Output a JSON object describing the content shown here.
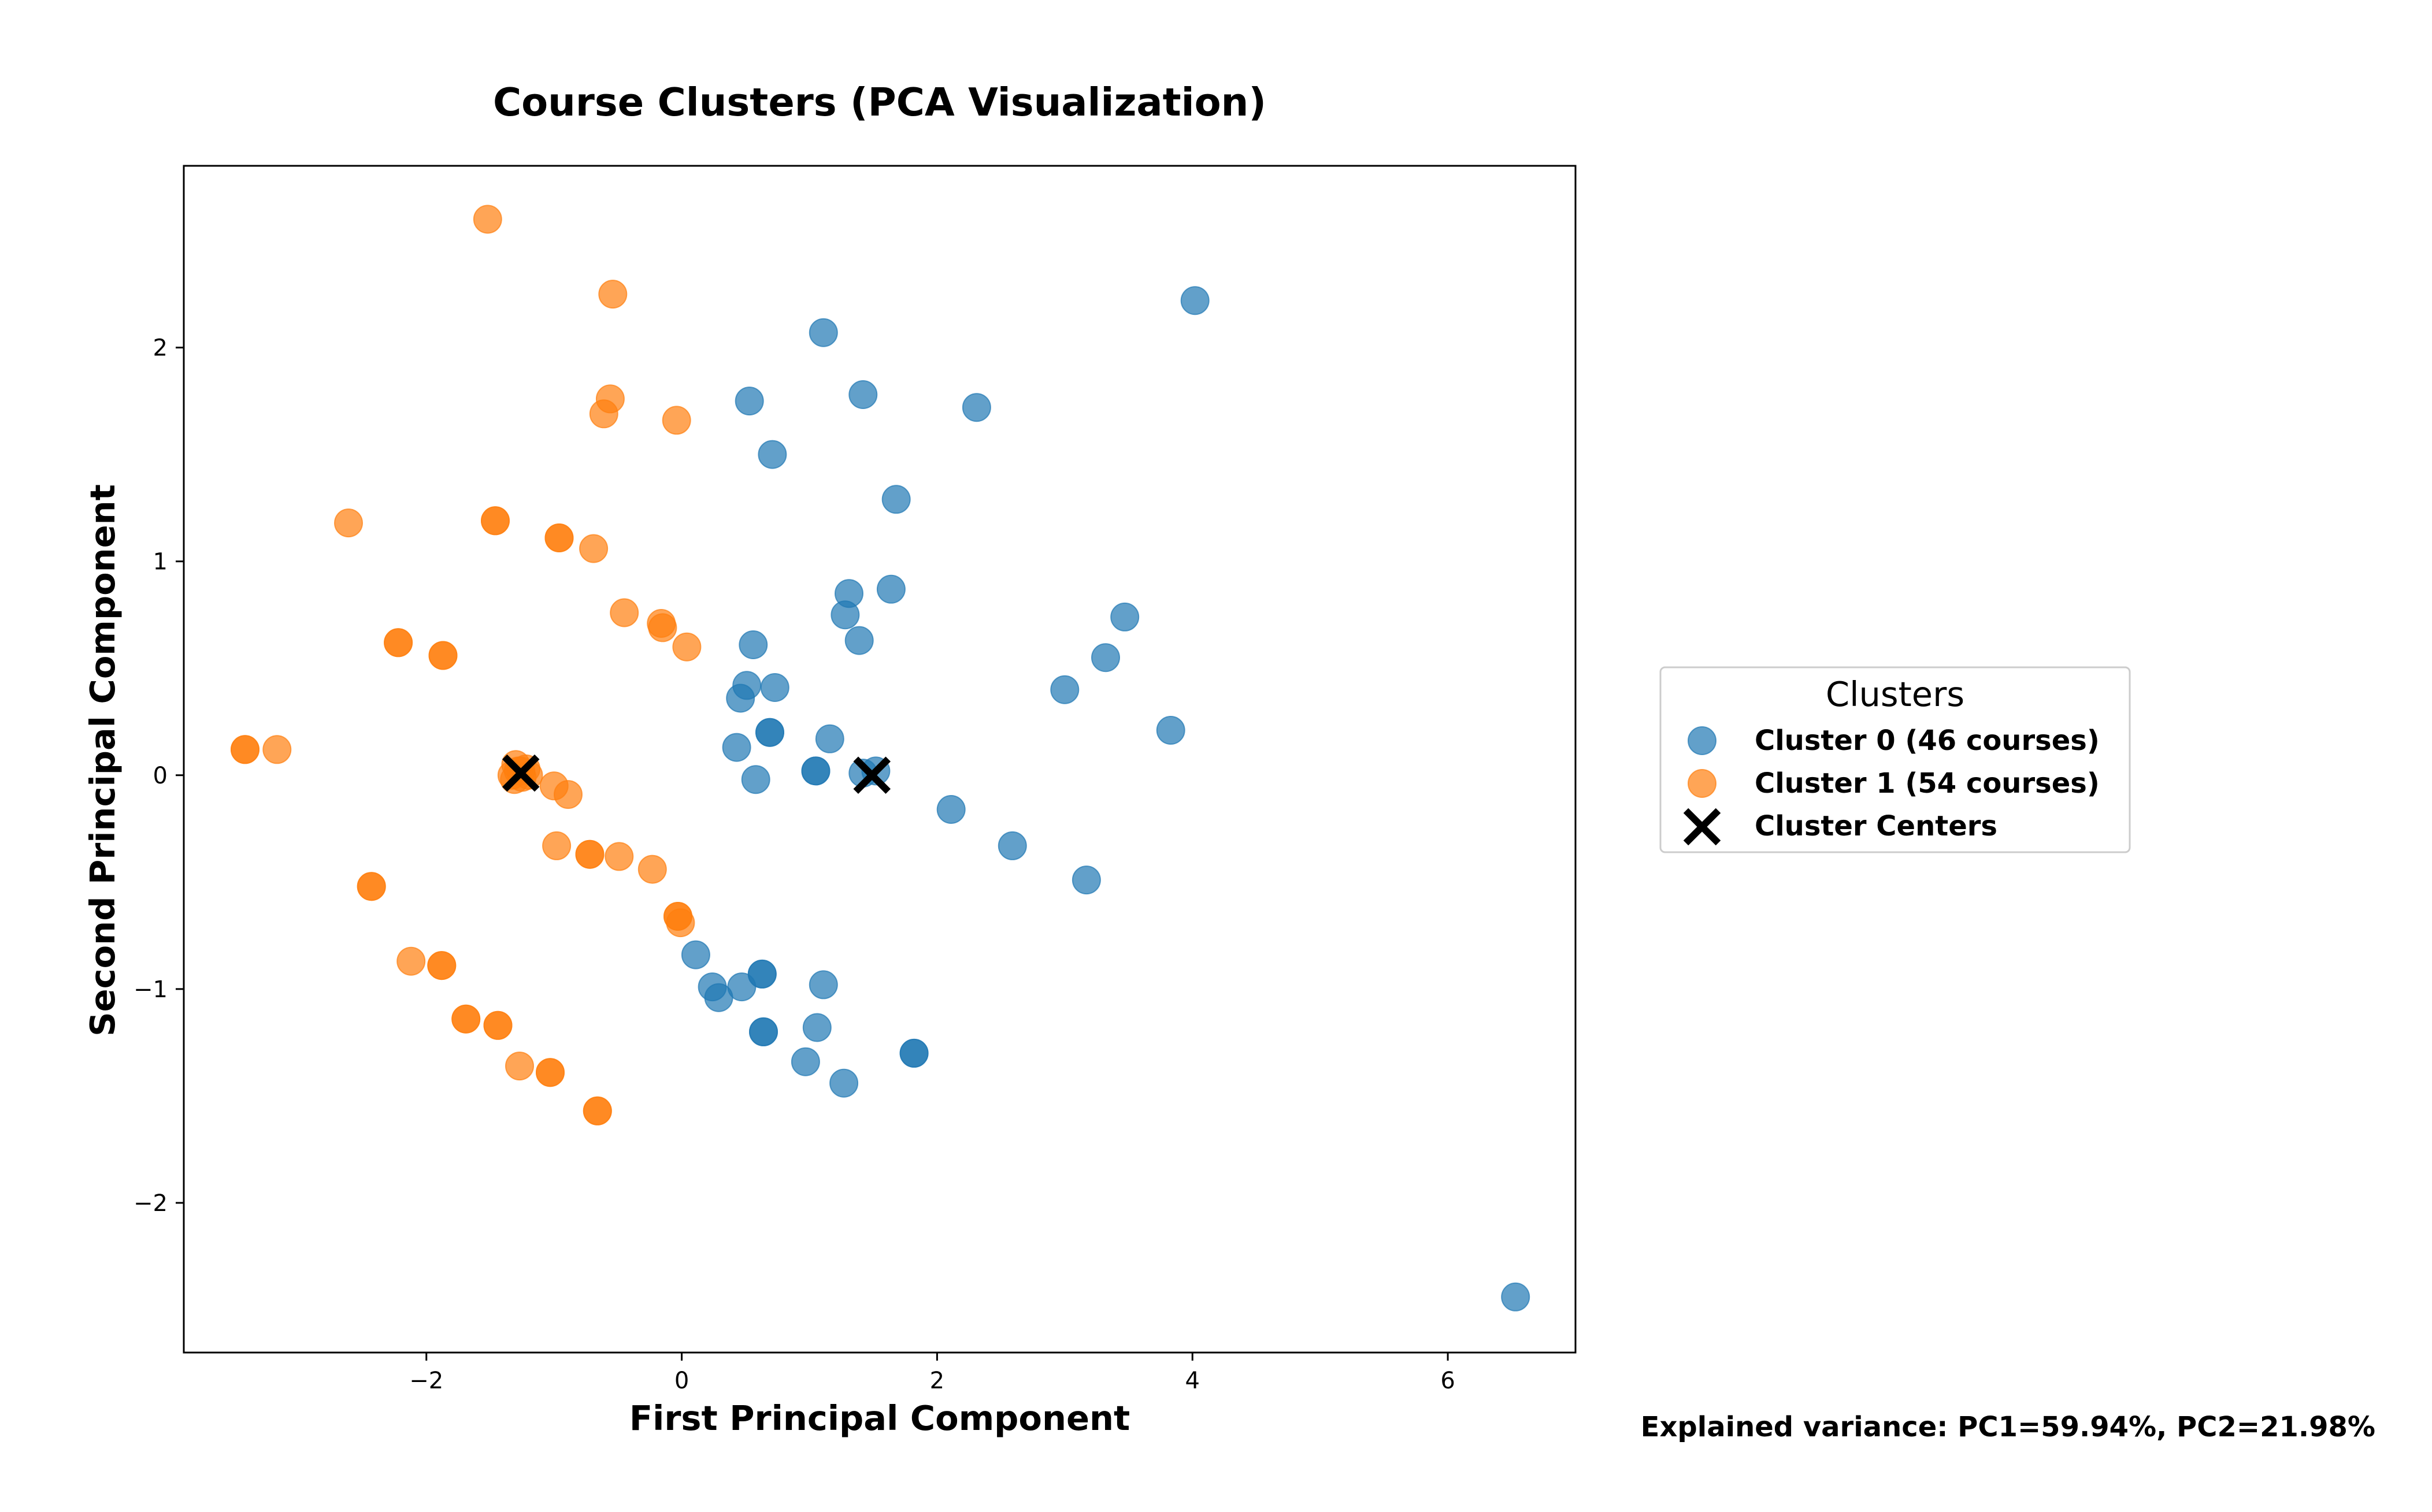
{
  "chart_data": {
    "type": "scatter",
    "title": "Course Clusters (PCA Visualization)",
    "xlabel": "First Principal Component",
    "ylabel": "Second Principal Component",
    "xlim": [
      -3.9,
      7.0
    ],
    "ylim": [
      -2.7,
      2.85
    ],
    "xticks": [
      -2,
      0,
      2,
      4,
      6
    ],
    "yticks": [
      -2,
      -1,
      0,
      1,
      2
    ],
    "xtick_labels": [
      "−2",
      "0",
      "2",
      "4",
      "6"
    ],
    "ytick_labels": [
      "−2",
      "−1",
      "0",
      "1",
      "2"
    ],
    "grid": false,
    "legend": {
      "title": "Clusters",
      "placement": "outside-right",
      "entries": [
        "Cluster 0 (46 courses)",
        "Cluster 1 (54 courses)",
        "Cluster Centers"
      ]
    },
    "annotation": "Explained variance: PC1=59.94%, PC2=21.98%",
    "colors": {
      "cluster0": "#1f77b4",
      "cluster1": "#ff7f0e",
      "centers": "#000000"
    },
    "series": [
      {
        "name": "Cluster 0 (46 courses)",
        "points": [
          [
            4.02,
            2.22
          ],
          [
            1.11,
            2.07
          ],
          [
            1.42,
            1.78
          ],
          [
            0.53,
            1.75
          ],
          [
            2.31,
            1.72
          ],
          [
            0.71,
            1.5
          ],
          [
            1.68,
            1.29
          ],
          [
            1.31,
            0.85
          ],
          [
            1.64,
            0.87
          ],
          [
            1.28,
            0.75
          ],
          [
            3.47,
            0.74
          ],
          [
            1.39,
            0.63
          ],
          [
            0.56,
            0.61
          ],
          [
            3.32,
            0.55
          ],
          [
            0.51,
            0.42
          ],
          [
            0.73,
            0.41
          ],
          [
            0.46,
            0.36
          ],
          [
            3.0,
            0.4
          ],
          [
            0.69,
            0.2
          ],
          [
            0.69,
            0.2
          ],
          [
            1.16,
            0.17
          ],
          [
            3.83,
            0.21
          ],
          [
            0.43,
            0.13
          ],
          [
            1.05,
            0.02
          ],
          [
            1.05,
            0.02
          ],
          [
            1.52,
            0.02
          ],
          [
            0.58,
            -0.02
          ],
          [
            2.11,
            -0.16
          ],
          [
            2.59,
            -0.33
          ],
          [
            3.17,
            -0.49
          ],
          [
            0.11,
            -0.84
          ],
          [
            0.63,
            -0.93
          ],
          [
            0.63,
            -0.93
          ],
          [
            0.24,
            -0.99
          ],
          [
            0.47,
            -0.99
          ],
          [
            1.11,
            -0.98
          ],
          [
            0.29,
            -1.04
          ],
          [
            0.64,
            -1.2
          ],
          [
            0.64,
            -1.2
          ],
          [
            1.06,
            -1.18
          ],
          [
            1.82,
            -1.3
          ],
          [
            1.82,
            -1.3
          ],
          [
            0.97,
            -1.34
          ],
          [
            1.27,
            -1.44
          ],
          [
            6.53,
            -2.44
          ],
          [
            1.42,
            0.01
          ]
        ]
      },
      {
        "name": "Cluster 1 (54 courses)",
        "points": [
          [
            -1.52,
            2.6
          ],
          [
            -0.54,
            2.25
          ],
          [
            -0.56,
            1.76
          ],
          [
            -0.61,
            1.69
          ],
          [
            -0.04,
            1.66
          ],
          [
            -2.61,
            1.18
          ],
          [
            -1.46,
            1.19
          ],
          [
            -1.46,
            1.19
          ],
          [
            -0.96,
            1.11
          ],
          [
            -0.96,
            1.11
          ],
          [
            -0.69,
            1.06
          ],
          [
            -0.45,
            0.76
          ],
          [
            -0.16,
            0.71
          ],
          [
            -0.15,
            0.69
          ],
          [
            0.04,
            0.6
          ],
          [
            -2.22,
            0.62
          ],
          [
            -2.22,
            0.62
          ],
          [
            -1.87,
            0.56
          ],
          [
            -1.87,
            0.56
          ],
          [
            -3.42,
            0.12
          ],
          [
            -3.42,
            0.12
          ],
          [
            -3.17,
            0.12
          ],
          [
            -1.28,
            0.02
          ],
          [
            -1.25,
            -0.01
          ],
          [
            -1.0,
            -0.05
          ],
          [
            -0.89,
            -0.09
          ],
          [
            -0.98,
            -0.33
          ],
          [
            -0.72,
            -0.37
          ],
          [
            -0.72,
            -0.37
          ],
          [
            -0.49,
            -0.38
          ],
          [
            -0.23,
            -0.44
          ],
          [
            -0.03,
            -0.66
          ],
          [
            -0.03,
            -0.66
          ],
          [
            -0.01,
            -0.69
          ],
          [
            -2.43,
            -0.52
          ],
          [
            -2.43,
            -0.52
          ],
          [
            -2.12,
            -0.87
          ],
          [
            -1.88,
            -0.89
          ],
          [
            -1.88,
            -0.89
          ],
          [
            -1.69,
            -1.14
          ],
          [
            -1.69,
            -1.14
          ],
          [
            -1.44,
            -1.17
          ],
          [
            -1.44,
            -1.17
          ],
          [
            -1.27,
            -1.36
          ],
          [
            -1.03,
            -1.39
          ],
          [
            -1.03,
            -1.39
          ],
          [
            -0.66,
            -1.57
          ],
          [
            -0.66,
            -1.57
          ],
          [
            -1.3,
            0.05
          ],
          [
            -1.2,
            0.0
          ],
          [
            -1.33,
            0.0
          ],
          [
            -1.22,
            0.03
          ],
          [
            -1.31,
            -0.02
          ],
          [
            -1.26,
            0.02
          ]
        ]
      },
      {
        "name": "Cluster Centers",
        "points": [
          [
            -1.26,
            0.01
          ],
          [
            1.49,
            0.0
          ]
        ]
      }
    ]
  }
}
